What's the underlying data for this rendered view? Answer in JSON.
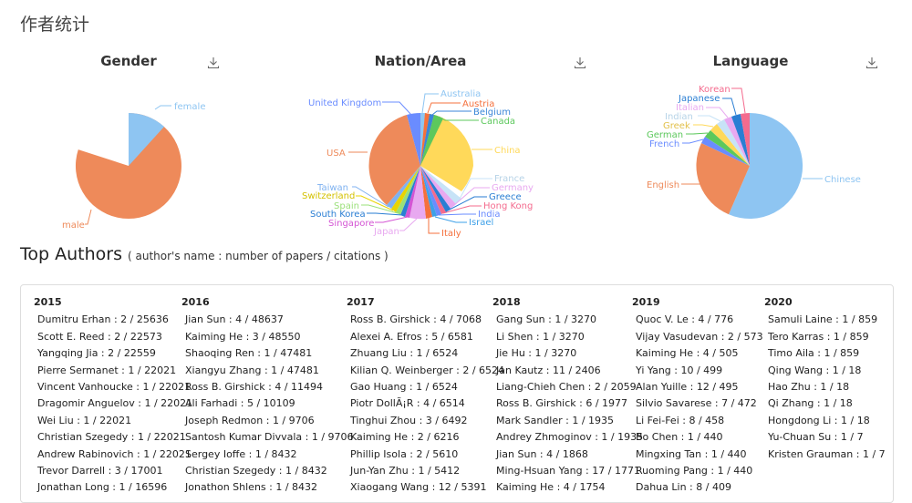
{
  "page_title": "作者统计",
  "charts": {
    "gender": {
      "title": "Gender",
      "labels": [
        "female",
        "male"
      ]
    },
    "nation": {
      "title": "Nation/Area",
      "labels": [
        "Australia",
        "Austria",
        "Belgium",
        "Canada",
        "China",
        "France",
        "Germany",
        "Greece",
        "Hong Kong",
        "India",
        "Israel",
        "Italy",
        "Japan",
        "Singapore",
        "South Korea",
        "Spain",
        "Switzerland",
        "Taiwan",
        "USA",
        "United Kingdom"
      ]
    },
    "language": {
      "title": "Language",
      "labels": [
        "Korean",
        "Japanese",
        "Italian",
        "Indian",
        "Greek",
        "German",
        "French",
        "English",
        "Chinese"
      ]
    }
  },
  "top_authors": {
    "title": "Top Authors",
    "subtitle": "( author's name : number of papers / citations )"
  },
  "columns": [
    {
      "year": "2015",
      "rows": [
        "Dumitru Erhan : 2 / 25636",
        "Scott E. Reed : 2 / 22573",
        "Yangqing Jia : 2 / 22559",
        "Pierre Sermanet : 1 / 22021",
        "Vincent Vanhoucke : 1 / 22021",
        "Dragomir Anguelov : 1 / 22021",
        "Wei Liu : 1 / 22021",
        "Christian Szegedy : 1 / 22021",
        "Andrew Rabinovich : 1 / 22021",
        "Trevor Darrell : 3 / 17001",
        "Jonathan Long : 1 / 16596"
      ]
    },
    {
      "year": "2016",
      "rows": [
        "Jian Sun : 4 / 48637",
        "Kaiming He : 3 / 48550",
        "Shaoqing Ren : 1 / 47481",
        "Xiangyu Zhang : 1 / 47481",
        "Ross B. Girshick : 4 / 11494",
        "Ali Farhadi : 5 / 10109",
        "Joseph Redmon : 1 / 9706",
        "Santosh Kumar Divvala : 1 / 9706",
        "Sergey Ioffe : 1 / 8432",
        "Christian Szegedy : 1 / 8432",
        "Jonathon Shlens : 1 / 8432"
      ]
    },
    {
      "year": "2017",
      "rows": [
        "Ross B. Girshick : 4 / 7068",
        "Alexei A. Efros : 5 / 6581",
        "Zhuang Liu : 1 / 6524",
        "Kilian Q. Weinberger : 2 / 6524",
        "Gao Huang : 1 / 6524",
        "Piotr DollÃ¡R : 4 / 6514",
        "Tinghui Zhou : 3 / 6492",
        "Kaiming He : 2 / 6216",
        "Phillip Isola : 2 / 5610",
        "Jun-Yan Zhu : 1 / 5412",
        "Xiaogang Wang : 12 / 5391"
      ]
    },
    {
      "year": "2018",
      "rows": [
        "Gang Sun : 1 / 3270",
        "Li Shen : 1 / 3270",
        "Jie Hu : 1 / 3270",
        "Jan Kautz : 11 / 2406",
        "Liang-Chieh Chen : 2 / 2059",
        "Ross B. Girshick : 6 / 1977",
        "Mark Sandler : 1 / 1935",
        "Andrey Zhmoginov : 1 / 1935",
        "Jian Sun : 4 / 1868",
        "Ming-Hsuan Yang : 17 / 1771",
        "Kaiming He : 4 / 1754"
      ]
    },
    {
      "year": "2019",
      "rows": [
        "Quoc V. Le : 4 / 776",
        "Vijay Vasudevan : 2 / 573",
        "Kaiming He : 4 / 505",
        "Yi Yang : 10 / 499",
        "Alan Yuille : 12 / 495",
        "Silvio Savarese : 7 / 472",
        "Li Fei-Fei : 8 / 458",
        "Bo Chen : 1 / 440",
        "Mingxing Tan : 1 / 440",
        "Ruoming Pang : 1 / 440",
        "Dahua Lin : 8 / 409"
      ]
    },
    {
      "year": "2020",
      "rows": [
        "Samuli Laine : 1 / 859",
        "Tero Karras : 1 / 859",
        "Timo Aila : 1 / 859",
        "Qing Wang : 1 / 18",
        "Hao Zhu : 1 / 18",
        "Qi Zhang : 1 / 18",
        "Hongdong Li : 1 / 18",
        "Yu-Chuan Su : 1 / 7",
        "Kristen Grauman : 1 / 7"
      ]
    }
  ]
}
